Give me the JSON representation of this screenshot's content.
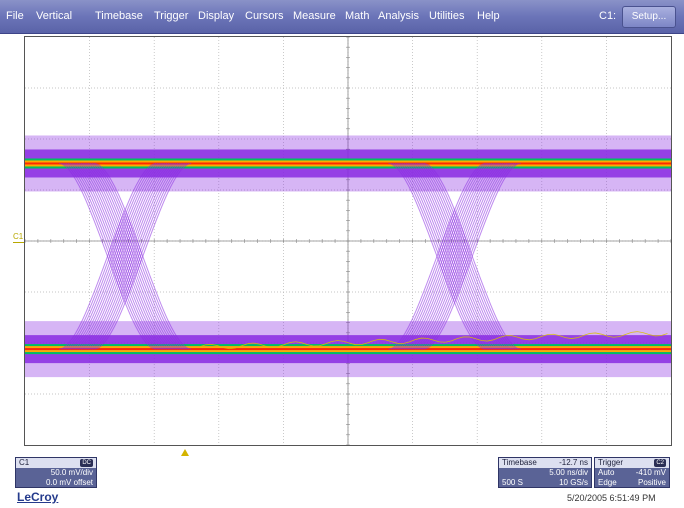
{
  "menu": {
    "items": [
      "File",
      "Vertical",
      "Timebase",
      "Trigger",
      "Display",
      "Cursors",
      "Measure",
      "Math",
      "Analysis",
      "Utilities",
      "Help"
    ],
    "channel_label": "C1:",
    "setup_label": "Setup..."
  },
  "grid": {
    "divisions_x": 10,
    "divisions_y": 8,
    "line_color": "#b4b4b4"
  },
  "trace": {
    "channel_marker": "C1",
    "eye_color": "#8a2be2",
    "high_band_colors": [
      "#ff2a00",
      "#ffaa00",
      "#00c060"
    ],
    "reference_trace_color": "#d8c000"
  },
  "channel_box": {
    "name": "C1",
    "coupling": "DC",
    "scale": "50.0 mV/div",
    "offset": "0.0 mV offset"
  },
  "timebase_box": {
    "title": "Timebase",
    "delay": "-12.7 ns",
    "rate": "5.00 ns/div",
    "samples": "500 S",
    "sample_rate": "10 GS/s"
  },
  "trigger_box": {
    "title": "Trigger",
    "source": "C2",
    "mode": "Auto",
    "level": "-410 mV",
    "type": "Edge",
    "slope": "Positive"
  },
  "footer": {
    "logo": "LeCroy",
    "timestamp": "5/20/2005 6:51:49 PM"
  }
}
